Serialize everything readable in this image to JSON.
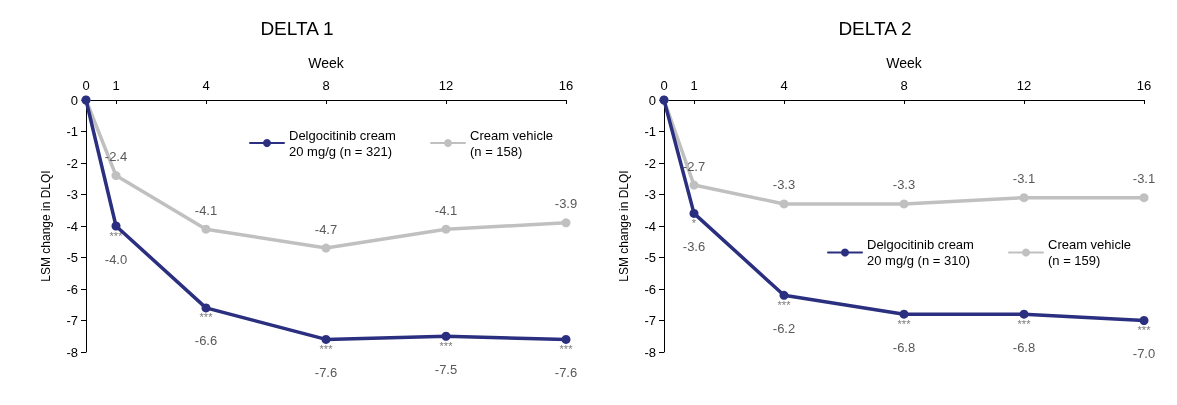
{
  "chart_data": [
    {
      "type": "line",
      "title": "DELTA 1",
      "xlabel": "Week",
      "ylabel": "LSM change in DLQI",
      "x": [
        0,
        1,
        4,
        8,
        12,
        16
      ],
      "xlim": [
        0,
        16
      ],
      "xticks": [
        0,
        1,
        4,
        8,
        12,
        16
      ],
      "ylim": [
        -8,
        0
      ],
      "yticks": [
        0,
        -1,
        -2,
        -3,
        -4,
        -5,
        -6,
        -7,
        -8
      ],
      "grid": false,
      "legend": "top right",
      "marker": "circle",
      "line_style": "solid",
      "series": [
        {
          "name": "Delgocitinib cream 20 mg/g (n = 321)",
          "color": "#2b2f7f",
          "values": [
            0,
            -4.0,
            -6.6,
            -7.6,
            -7.5,
            -7.6
          ],
          "value_labels": [
            null,
            "-4.0",
            "-6.6",
            "-7.6",
            "-7.5",
            "-7.6"
          ]
        },
        {
          "name": "Cream vehicle (n = 158)",
          "color": "#c0c0c0",
          "values": [
            0,
            -2.4,
            -4.1,
            -4.7,
            -4.1,
            -3.9
          ],
          "value_labels": [
            null,
            "-2.4",
            "-4.1",
            "-4.7",
            "-4.1",
            "-3.9"
          ]
        }
      ],
      "annotations": [
        {
          "text": "***",
          "x": 1,
          "y": -4.0
        },
        {
          "text": "***",
          "x": 4,
          "y": -6.6
        },
        {
          "text": "***",
          "x": 8,
          "y": -7.6
        },
        {
          "text": "***",
          "x": 12,
          "y": -7.5
        },
        {
          "text": "***",
          "x": 16,
          "y": -7.6
        }
      ]
    },
    {
      "type": "line",
      "title": "DELTA 2",
      "xlabel": "Week",
      "ylabel": "LSM change in DLQI",
      "x": [
        0,
        1,
        4,
        8,
        12,
        16
      ],
      "xlim": [
        0,
        16
      ],
      "xticks": [
        0,
        1,
        4,
        8,
        12,
        16
      ],
      "ylim": [
        -8,
        0
      ],
      "yticks": [
        0,
        -1,
        -2,
        -3,
        -4,
        -5,
        -6,
        -7,
        -8
      ],
      "grid": false,
      "legend": "right",
      "marker": "circle",
      "line_style": "solid",
      "series": [
        {
          "name": "Delgocitinib cream 20 mg/g (n = 310)",
          "color": "#2b2f7f",
          "values": [
            0,
            -3.6,
            -6.2,
            -6.8,
            -6.8,
            -7.0
          ],
          "value_labels": [
            null,
            "-3.6",
            "-6.2",
            "-6.8",
            "-6.8",
            "-7.0"
          ]
        },
        {
          "name": "Cream vehicle (n = 159)",
          "color": "#c0c0c0",
          "values": [
            0,
            -2.7,
            -3.3,
            -3.3,
            -3.1,
            -3.1
          ],
          "value_labels": [
            null,
            "-2.7",
            "-3.3",
            "-3.3",
            "-3.1",
            "-3.1"
          ]
        }
      ],
      "annotations": [
        {
          "text": "*",
          "x": 1,
          "y": -3.6
        },
        {
          "text": "***",
          "x": 4,
          "y": -6.2
        },
        {
          "text": "***",
          "x": 8,
          "y": -6.8
        },
        {
          "text": "***",
          "x": 12,
          "y": -6.8
        },
        {
          "text": "***",
          "x": 16,
          "y": -7.0
        }
      ]
    }
  ]
}
